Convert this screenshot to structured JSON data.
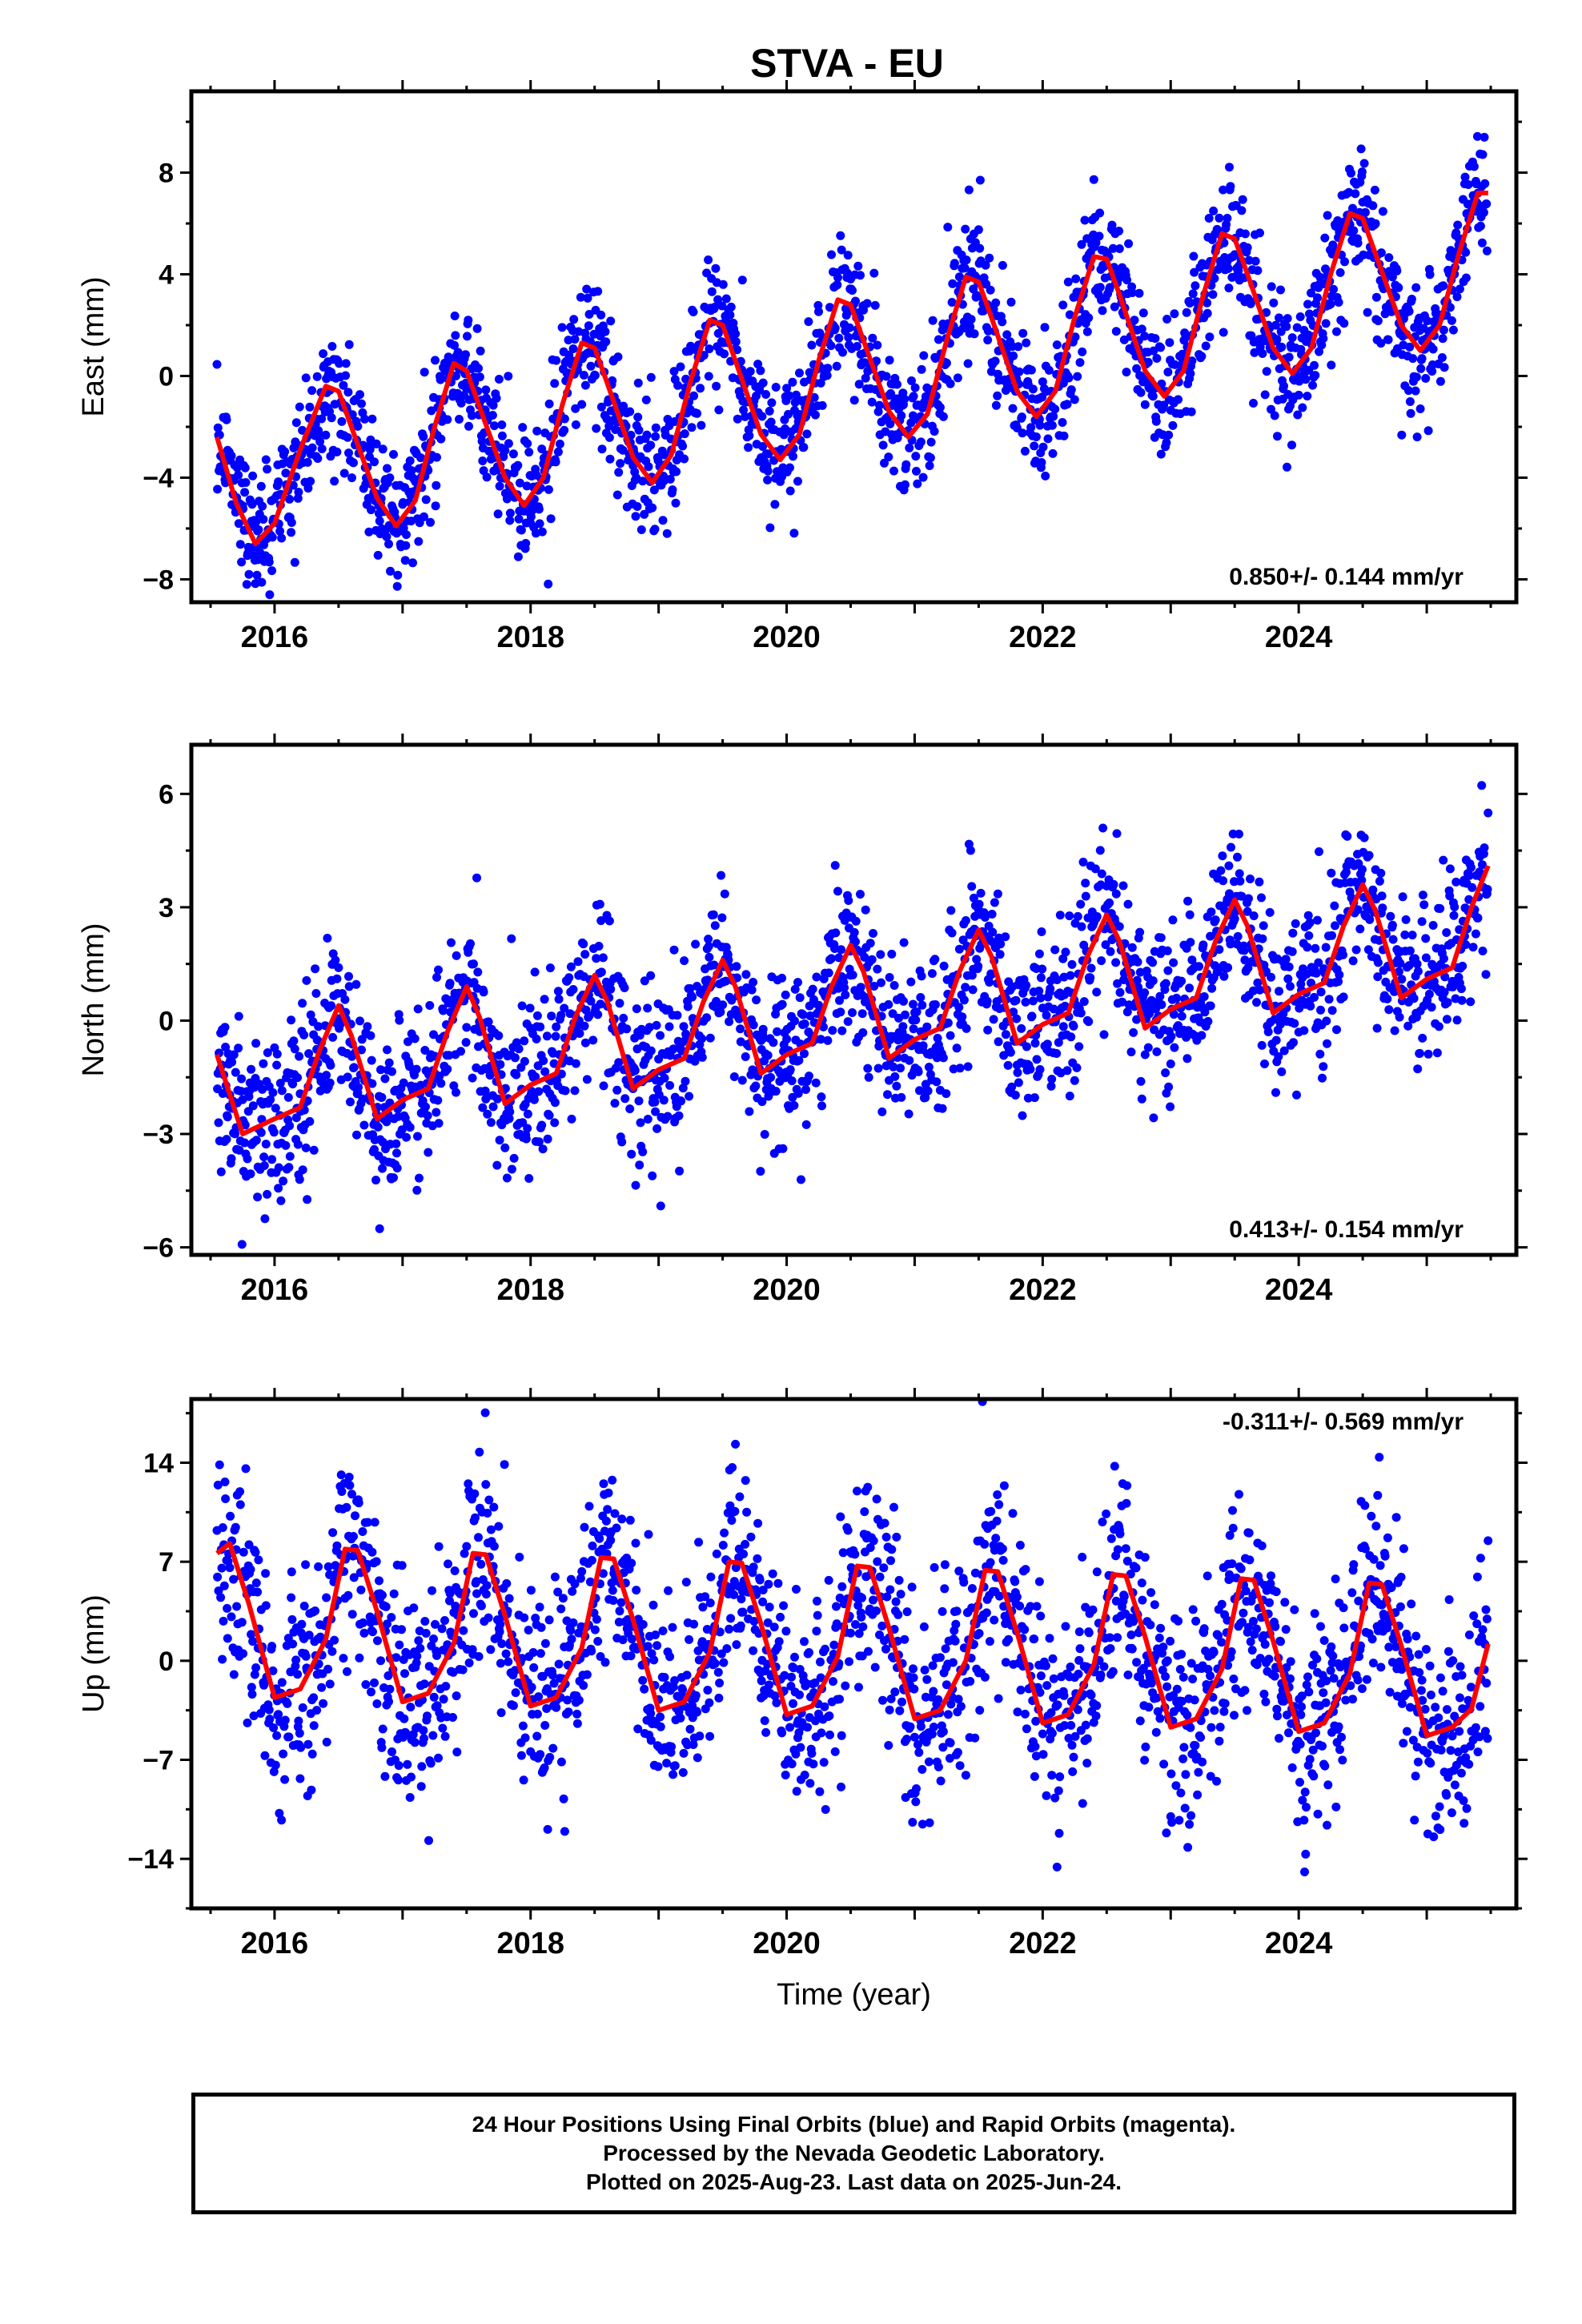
{
  "chart_data": {
    "title": "STVA - EU",
    "type": "scatter",
    "panels": [
      {
        "name": "east",
        "ylabel": "East (mm)",
        "rate_label": "0.850+/- 0.144 mm/yr",
        "rate_position": "bottom-right",
        "ylim": [
          -8.9,
          11.2
        ],
        "yticks": [
          -8,
          -4,
          0,
          4,
          8
        ],
        "xlim": [
          2015.35,
          2025.7
        ],
        "xticks": [
          2016,
          2018,
          2020,
          2022,
          2024
        ],
        "trend": {
          "slope": 0.85,
          "value_at_2020": -2.3
        },
        "seasonal_amplitude": 2.8,
        "scatter_sigma": 1.3,
        "fit_series": {
          "name": "",
          "color": "#ff0000",
          "x": [
            2015.55,
            2015.7,
            2015.85,
            2016.0,
            2016.2,
            2016.4,
            2016.5,
            2016.6,
            2016.8,
            2016.95,
            2017.1,
            2017.25,
            2017.4,
            2017.5,
            2017.6,
            2017.8,
            2017.95,
            2018.1,
            2018.25,
            2018.4,
            2018.5,
            2018.6,
            2018.8,
            2018.95,
            2019.1,
            2019.25,
            2019.4,
            2019.5,
            2019.6,
            2019.8,
            2019.95,
            2020.1,
            2020.25,
            2020.4,
            2020.5,
            2020.6,
            2020.8,
            2020.95,
            2021.1,
            2021.25,
            2021.4,
            2021.5,
            2021.6,
            2021.8,
            2021.95,
            2022.1,
            2022.25,
            2022.4,
            2022.5,
            2022.6,
            2022.8,
            2022.95,
            2023.1,
            2023.25,
            2023.4,
            2023.5,
            2023.6,
            2023.8,
            2023.95,
            2024.1,
            2024.25,
            2024.4,
            2024.5,
            2024.6,
            2024.8,
            2024.95,
            2025.1,
            2025.25,
            2025.4,
            2025.48
          ],
          "y": [
            -2.4,
            -5.0,
            -6.6,
            -5.8,
            -2.9,
            -0.4,
            -0.6,
            -2.0,
            -4.8,
            -5.9,
            -4.9,
            -2.0,
            0.5,
            0.2,
            -1.2,
            -4.0,
            -5.1,
            -4.0,
            -1.1,
            1.3,
            1.1,
            -0.3,
            -3.2,
            -4.2,
            -3.1,
            -0.2,
            2.2,
            2.0,
            0.6,
            -2.3,
            -3.3,
            -2.3,
            0.6,
            3.0,
            2.8,
            1.4,
            -1.4,
            -2.4,
            -1.5,
            1.4,
            3.9,
            3.7,
            2.3,
            -0.6,
            -1.6,
            -0.6,
            2.3,
            4.7,
            4.6,
            3.2,
            0.2,
            -0.8,
            0.2,
            3.1,
            5.6,
            5.4,
            4.0,
            1.1,
            0.1,
            1.1,
            4.0,
            6.4,
            6.2,
            4.8,
            2.0,
            1.0,
            2.0,
            4.8,
            7.2,
            7.2
          ]
        }
      },
      {
        "name": "north",
        "ylabel": "North (mm)",
        "rate_label": "0.413+/- 0.154 mm/yr",
        "rate_position": "bottom-right",
        "ylim": [
          -6.2,
          7.3
        ],
        "yticks": [
          -6,
          -3,
          0,
          3,
          6
        ],
        "xlim": [
          2015.35,
          2025.7
        ],
        "xticks": [
          2016,
          2018,
          2020,
          2022,
          2024
        ],
        "trend": {
          "slope": 0.413,
          "value_at_2020": -0.4
        },
        "seasonal_amplitude": 1.6,
        "scatter_sigma": 1.1,
        "fit_series": {
          "name": "",
          "color": "#ff0000",
          "x": [
            2015.55,
            2015.75,
            2016.0,
            2016.2,
            2016.35,
            2016.5,
            2016.6,
            2016.8,
            2017.0,
            2017.2,
            2017.35,
            2017.5,
            2017.6,
            2017.8,
            2018.0,
            2018.2,
            2018.35,
            2018.5,
            2018.6,
            2018.8,
            2019.0,
            2019.2,
            2019.35,
            2019.5,
            2019.6,
            2019.8,
            2020.0,
            2020.2,
            2020.35,
            2020.5,
            2020.6,
            2020.8,
            2021.0,
            2021.2,
            2021.35,
            2021.5,
            2021.6,
            2021.8,
            2022.0,
            2022.2,
            2022.35,
            2022.5,
            2022.6,
            2022.8,
            2023.0,
            2023.2,
            2023.35,
            2023.5,
            2023.6,
            2023.8,
            2024.0,
            2024.2,
            2024.35,
            2024.5,
            2024.6,
            2024.8,
            2025.0,
            2025.2,
            2025.35,
            2025.48
          ],
          "y": [
            -0.9,
            -3.0,
            -2.6,
            -2.3,
            -0.8,
            0.4,
            -0.4,
            -2.6,
            -2.1,
            -1.8,
            -0.3,
            0.9,
            0.1,
            -2.2,
            -1.7,
            -1.4,
            0.1,
            1.2,
            0.5,
            -1.8,
            -1.3,
            -1.0,
            0.5,
            1.6,
            0.9,
            -1.4,
            -0.9,
            -0.6,
            0.9,
            2.0,
            1.3,
            -1.0,
            -0.5,
            -0.2,
            1.3,
            2.4,
            1.7,
            -0.6,
            -0.1,
            0.2,
            1.7,
            2.8,
            2.1,
            -0.2,
            0.3,
            0.6,
            2.1,
            3.2,
            2.5,
            0.2,
            0.7,
            1.0,
            2.5,
            3.6,
            2.9,
            0.6,
            1.1,
            1.4,
            3.0,
            4.1
          ]
        }
      },
      {
        "name": "up",
        "ylabel": "Up (mm)",
        "rate_label": "-0.311+/- 0.569 mm/yr",
        "rate_position": "top-right",
        "ylim": [
          -17.5,
          18.5
        ],
        "yticks": [
          -14,
          -7,
          0,
          7,
          14
        ],
        "xlim": [
          2015.35,
          2025.7
        ],
        "xticks": [
          2016,
          2018,
          2020,
          2022,
          2024
        ],
        "xlabel": "Time (year)",
        "trend": {
          "slope": -0.311,
          "value_at_2020": 1.2
        },
        "seasonal_amplitude": 5.8,
        "scatter_sigma": 3.6,
        "fit_series": {
          "name": "",
          "color": "#ff0000",
          "x": [
            2015.55,
            2015.65,
            2015.8,
            2016.0,
            2016.2,
            2016.4,
            2016.55,
            2016.65,
            2016.8,
            2017.0,
            2017.2,
            2017.4,
            2017.55,
            2017.65,
            2017.8,
            2018.0,
            2018.2,
            2018.4,
            2018.55,
            2018.65,
            2018.8,
            2019.0,
            2019.2,
            2019.4,
            2019.55,
            2019.65,
            2019.8,
            2020.0,
            2020.2,
            2020.4,
            2020.55,
            2020.65,
            2020.8,
            2021.0,
            2021.2,
            2021.4,
            2021.55,
            2021.65,
            2021.8,
            2022.0,
            2022.2,
            2022.4,
            2022.55,
            2022.65,
            2022.8,
            2023.0,
            2023.2,
            2023.4,
            2023.55,
            2023.65,
            2023.8,
            2024.0,
            2024.2,
            2024.4,
            2024.55,
            2024.65,
            2024.8,
            2025.0,
            2025.2,
            2025.35,
            2025.48
          ],
          "y": [
            7.6,
            8.3,
            4.0,
            -2.6,
            -2.0,
            1.5,
            7.9,
            7.8,
            3.5,
            -2.9,
            -2.3,
            1.2,
            7.6,
            7.5,
            3.2,
            -3.2,
            -2.6,
            0.9,
            7.3,
            7.2,
            2.9,
            -3.5,
            -2.9,
            0.6,
            7.0,
            6.9,
            2.6,
            -3.8,
            -3.2,
            0.3,
            6.7,
            6.6,
            2.3,
            -4.1,
            -3.5,
            0.0,
            6.4,
            6.3,
            2.0,
            -4.4,
            -3.8,
            -0.3,
            6.1,
            6.0,
            1.7,
            -4.7,
            -4.1,
            -0.6,
            5.8,
            5.7,
            1.4,
            -5.0,
            -4.4,
            -0.9,
            5.5,
            5.4,
            1.1,
            -5.3,
            -4.7,
            -3.4,
            1.2
          ]
        }
      }
    ],
    "scatter_series": {
      "name": "",
      "color": "#0000ff",
      "x_start": 2015.55,
      "x_end": 2025.48
    }
  },
  "footer": {
    "line1": "24 Hour Positions Using Final Orbits (blue) and Rapid Orbits (magenta).",
    "line2": "Processed by the Nevada Geodetic Laboratory.",
    "line3": "Plotted on 2025-Aug-23. Last data on 2025-Jun-24."
  }
}
